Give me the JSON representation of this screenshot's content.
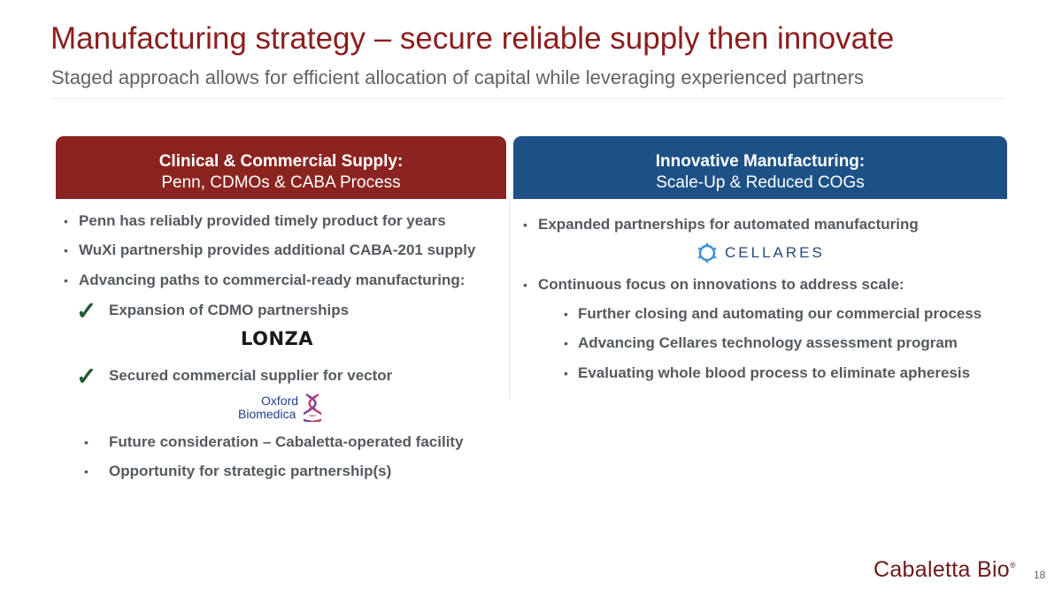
{
  "slide": {
    "title": "Manufacturing strategy – secure reliable supply then innovate",
    "subtitle": "Staged approach allows for efficient allocation of capital while leveraging experienced partners",
    "page_number": "18",
    "brand": "Cabaletta Bio",
    "brand_mark": "®"
  },
  "left_panel": {
    "header_line1": "Clinical & Commercial Supply:",
    "header_line2": "Penn, CDMOs & CABA Process",
    "color": "#8b2420",
    "bullets": [
      "Penn has reliably provided timely product for years",
      "WuXi partnership provides additional CABA-201 supply",
      "Advancing paths to commercial-ready manufacturing:"
    ],
    "checked_items": [
      "Expansion of CDMO partnerships",
      "Secured commercial supplier for vector"
    ],
    "sub_bullets": [
      "Future consideration – Cabaletta-operated facility",
      "Opportunity for strategic partnership(s)"
    ],
    "logo_lonza": "LONZA",
    "logo_oxford_line1": "Oxford",
    "logo_oxford_line2": "Biomedica"
  },
  "right_panel": {
    "header_line1": "Innovative Manufacturing:",
    "header_line2": "Scale-Up & Reduced COGs",
    "color": "#1d5186",
    "bullets": [
      "Expanded partnerships for automated manufacturing",
      "Continuous focus on innovations to address scale:"
    ],
    "sub_bullets": [
      "Further closing and automating our commercial process",
      "Advancing Cellares technology assessment program",
      "Evaluating whole blood process to eliminate apheresis"
    ],
    "logo_cellares": "CELLARES"
  },
  "icons": {
    "check": "checkmark-icon",
    "bullet": "bullet-dot-icon",
    "dna": "dna-helix-icon",
    "cellares": "cellares-ring-icon"
  }
}
